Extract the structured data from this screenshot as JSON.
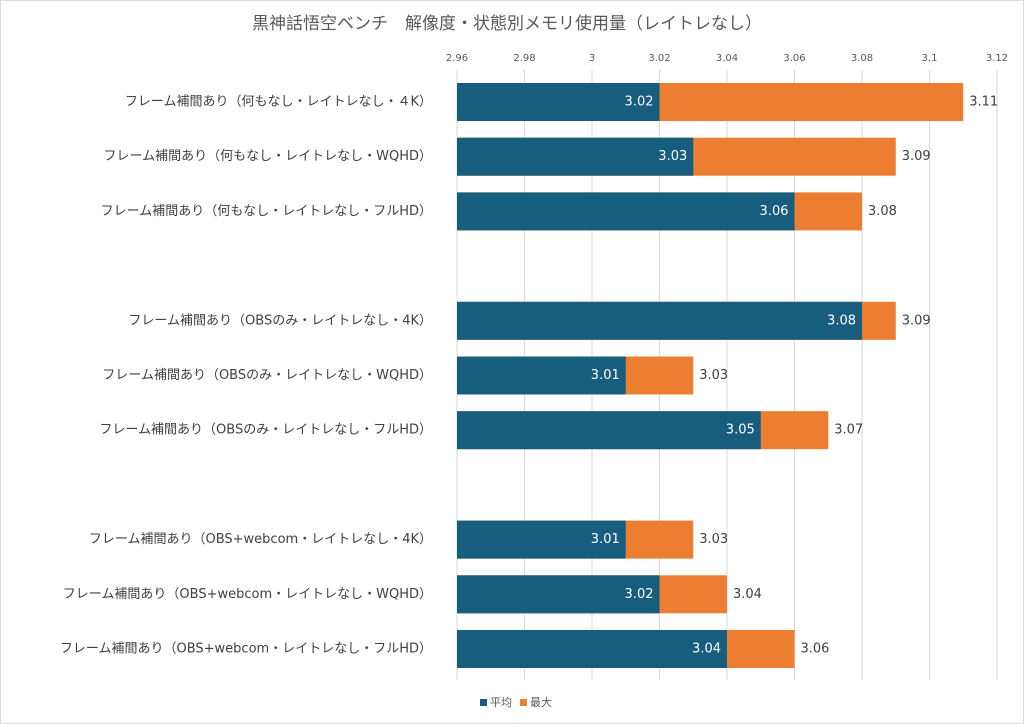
{
  "chart_data": {
    "type": "bar",
    "orientation": "horizontal",
    "overlap": true,
    "title": "黒神話悟空ベンチ　解像度・状態別メモリ使用量（レイトレなし）",
    "categories": [
      "フレーム補間あり（何もなし・レイトレなし・４K）",
      "フレーム補間あり（何もなし・レイトレなし・WQHD）",
      "フレーム補間あり（何もなし・レイトレなし・フルHD）",
      null,
      "フレーム補間あり（OBSのみ・レイトレなし・4K）",
      "フレーム補間あり（OBSのみ・レイトレなし・WQHD）",
      "フレーム補間あり（OBSのみ・レイトレなし・フルHD）",
      null,
      "フレーム補間あり（OBS+webcom・レイトレなし・4K）",
      "フレーム補間あり（OBS+webcom・レイトレなし・WQHD）",
      "フレーム補間あり（OBS+webcom・レイトレなし・フルHD）"
    ],
    "series": [
      {
        "name": "最大",
        "color": "#ed7d31",
        "values": [
          3.11,
          3.09,
          3.08,
          null,
          3.09,
          3.03,
          3.07,
          null,
          3.03,
          3.04,
          3.06
        ]
      },
      {
        "name": "平均",
        "color": "#175e7e",
        "values": [
          3.02,
          3.03,
          3.06,
          null,
          3.08,
          3.01,
          3.05,
          null,
          3.01,
          3.02,
          3.04
        ]
      }
    ],
    "xlim": [
      2.96,
      3.12
    ],
    "xticks": [
      2.96,
      2.98,
      3,
      3.02,
      3.04,
      3.06,
      3.08,
      3.1,
      3.12
    ],
    "grid": true,
    "legend": "bottom"
  }
}
